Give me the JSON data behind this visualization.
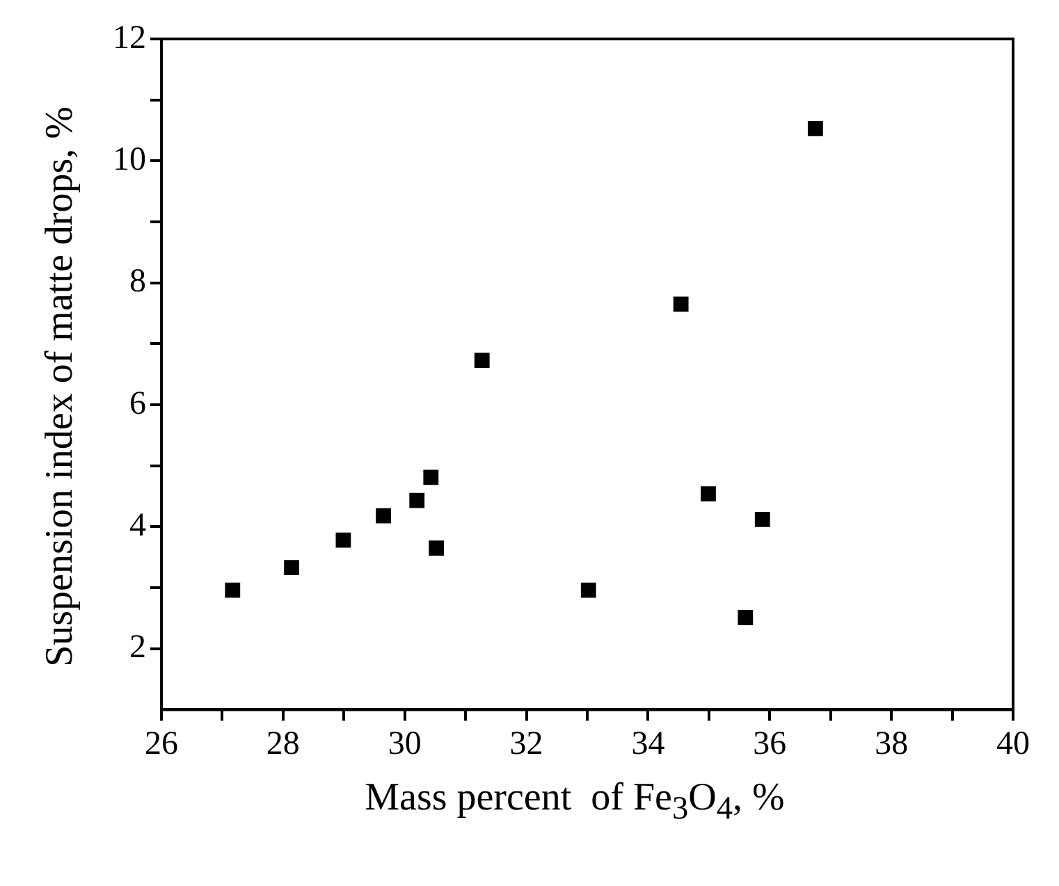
{
  "chart_data": {
    "type": "scatter",
    "xlabel": "Mass percent  of Fe$_{3}$O$_{4}$, %",
    "ylabel": "Suspension index of matte drops, %",
    "x": [
      27.17,
      28.14,
      28.99,
      29.65,
      30.2,
      30.43,
      30.52,
      31.27,
      33.02,
      34.54,
      34.99,
      35.6,
      35.88,
      36.75
    ],
    "series": [
      {
        "color": "#000000",
        "values": [
          2.96,
          3.33,
          3.78,
          4.18,
          4.43,
          4.81,
          3.65,
          6.73,
          2.96,
          7.65,
          4.54,
          2.51,
          4.12,
          10.53
        ]
      }
    ],
    "marker": "square",
    "grid": false,
    "legend": false,
    "xlim": [
      26,
      40
    ],
    "xticks": [
      26,
      {
        "value": 27,
        "label": null
      },
      28,
      {
        "value": 29,
        "label": null
      },
      30,
      {
        "value": 31,
        "label": null
      },
      32,
      {
        "value": 33,
        "label": null
      },
      34,
      {
        "value": 35,
        "label": null
      },
      36,
      {
        "value": 37,
        "label": null
      },
      38,
      {
        "value": 39,
        "label": null
      },
      40
    ],
    "ylim": [
      1,
      12
    ],
    "yticks": [
      2,
      {
        "value": 3,
        "label": null
      },
      4,
      {
        "value": 5,
        "label": null
      },
      6,
      {
        "value": 7,
        "label": null
      },
      8,
      {
        "value": 9,
        "label": null
      },
      10,
      {
        "value": 11,
        "label": null
      },
      12
    ]
  }
}
